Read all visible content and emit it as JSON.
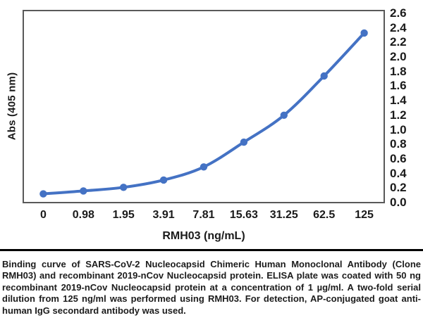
{
  "chart_data": {
    "type": "line",
    "title": "",
    "xlabel": "RMH03 (ng/mL)",
    "ylabel": "Abs (405 nm)",
    "categories": [
      "0",
      "0.98",
      "1.95",
      "3.91",
      "7.81",
      "15.63",
      "31.25",
      "62.5",
      "125"
    ],
    "values": [
      0.12,
      0.16,
      0.21,
      0.31,
      0.49,
      0.83,
      1.2,
      1.74,
      2.33
    ],
    "ylim": [
      0.0,
      2.6
    ],
    "ytick_labels": [
      "0.0",
      "0.2",
      "0.4",
      "0.6",
      "0.8",
      "1.0",
      "1.2",
      "1.4",
      "1.6",
      "1.8",
      "2.0",
      "2.2",
      "2.4",
      "2.6"
    ],
    "grid": false,
    "legend_position": "none",
    "line_color": "#4472C4",
    "marker_color": "#4472C4",
    "axis_color": "#595959",
    "text_color": "#1a1a1a"
  },
  "caption": {
    "text": "Binding curve of SARS-CoV-2 Nucleocapsid Chimeric Human Monoclonal Antibody (Clone RMH03) and recombinant 2019-nCov Nucleocapsid protein. ELISA plate was coated with 50 ng recombinant 2019-nCov Nucleocapsid protein at a concentration of 1 µg/ml. A two-fold serial dilution from 125 ng/ml was performed using RMH03. For detection, AP-conjugated goat anti-human IgG secondard antibody was used."
  }
}
